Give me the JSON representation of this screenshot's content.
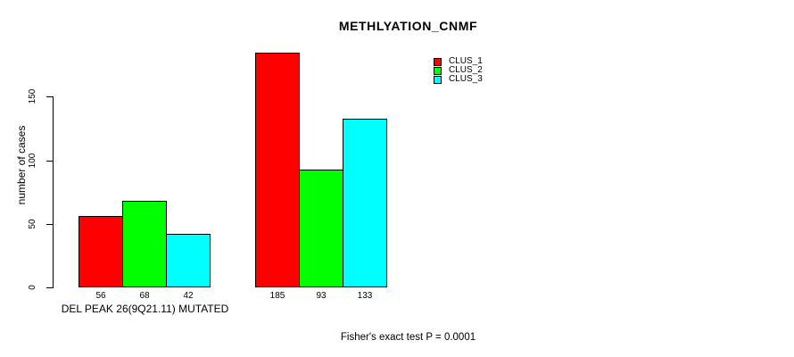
{
  "chart_data": {
    "type": "bar",
    "title": "METHLYATION_CNMF",
    "ylabel": "number of cases",
    "xlabel": "DEL PEAK 26(9Q21.11) MUTATED",
    "annotation": "Fisher's exact test P = 0.0001",
    "categories": [
      "DEL PEAK 26(9Q21.11) MUTATED",
      ""
    ],
    "series": [
      {
        "name": "CLUS_1",
        "color": "#ff0000",
        "values": [
          56,
          185
        ]
      },
      {
        "name": "CLUS_2",
        "color": "#00ff00",
        "values": [
          68,
          93
        ]
      },
      {
        "name": "CLUS_3",
        "color": "#00ffff",
        "values": [
          42,
          133
        ]
      }
    ],
    "yticks": [
      0,
      50,
      100,
      150
    ],
    "ylim": [
      0,
      190
    ],
    "grid": false,
    "legend_position": "top-right",
    "bar_border_color": "#000000",
    "axis_color": "#000000",
    "text_color": "#000000",
    "background_color": "#ffffff"
  }
}
